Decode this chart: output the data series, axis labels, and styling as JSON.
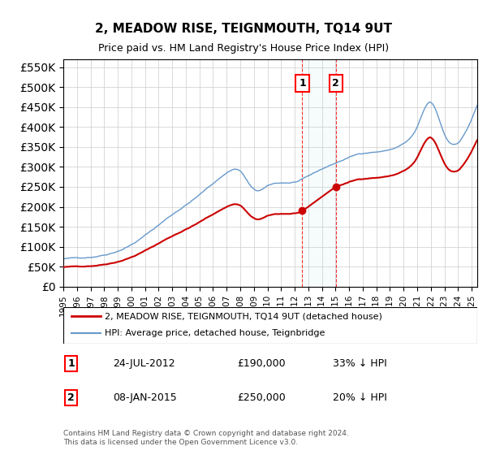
{
  "title": "2, MEADOW RISE, TEIGNMOUTH, TQ14 9UT",
  "subtitle": "Price paid vs. HM Land Registry's House Price Index (HPI)",
  "ylabel_ticks": [
    "£0",
    "£50K",
    "£100K",
    "£150K",
    "£200K",
    "£250K",
    "£300K",
    "£350K",
    "£400K",
    "£450K",
    "£500K",
    "£550K"
  ],
  "ylim": [
    0,
    570000
  ],
  "yticks": [
    0,
    50000,
    100000,
    150000,
    200000,
    250000,
    300000,
    350000,
    400000,
    450000,
    500000,
    550000
  ],
  "hpi_color": "#6699cc",
  "price_color": "#cc0000",
  "marker1_date": "2012-07-24",
  "marker1_price": 190000,
  "marker2_date": "2015-01-08",
  "marker2_price": 250000,
  "legend1": "2, MEADOW RISE, TEIGNMOUTH, TQ14 9UT (detached house)",
  "legend2": "HPI: Average price, detached house, Teignbridge",
  "note1_label": "1",
  "note1_date": "24-JUL-2012",
  "note1_price": "£190,000",
  "note1_hpi": "33% ↓ HPI",
  "note2_label": "2",
  "note2_date": "08-JAN-2015",
  "note2_price": "£250,000",
  "note2_hpi": "20% ↓ HPI",
  "footer": "Contains HM Land Registry data © Crown copyright and database right 2024.\nThis data is licensed under the Open Government Licence v3.0.",
  "background_color": "#ffffff",
  "grid_color": "#cccccc"
}
